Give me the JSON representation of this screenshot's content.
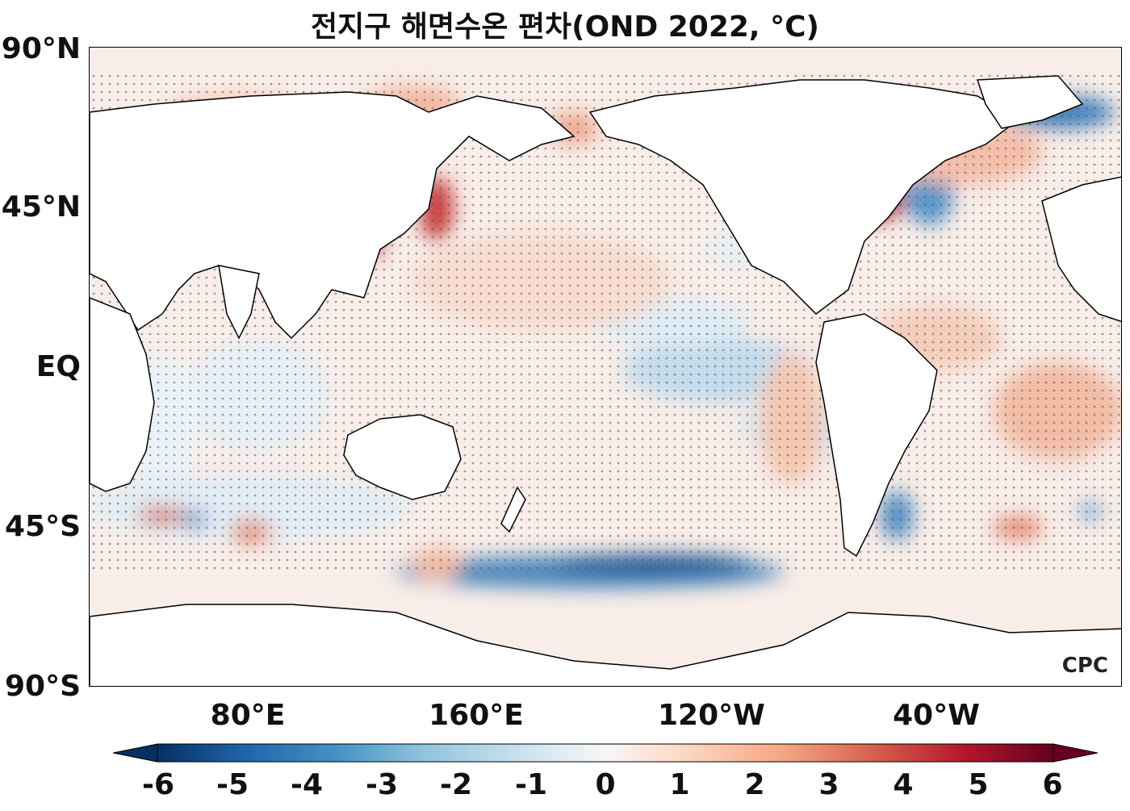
{
  "title": "전지구 해면수온 편차(OND 2022, °C)",
  "y_axis_labels": [
    "90°N",
    "45°N",
    "EQ",
    "45°S",
    "90°S"
  ],
  "x_axis_labels": [
    "80°E",
    "160°E",
    "120°W",
    "40°W"
  ],
  "colorbar": {
    "tick_labels": [
      "-6",
      "-5",
      "-4",
      "-3",
      "-2",
      "-1",
      "0",
      "1",
      "2",
      "3",
      "4",
      "5",
      "6"
    ],
    "min": -6,
    "max": 6,
    "colors": [
      "#053061",
      "#2166ac",
      "#4393c3",
      "#92c5de",
      "#d1e5f0",
      "#f7f7f7",
      "#fddbc7",
      "#f4a582",
      "#d6604d",
      "#b2182b",
      "#67001f"
    ]
  },
  "logo": "CPC",
  "colors": {
    "land": "#ffffff",
    "ocean_base": "#f6ece6",
    "coast": "#000000",
    "stipple": "#555555"
  }
}
